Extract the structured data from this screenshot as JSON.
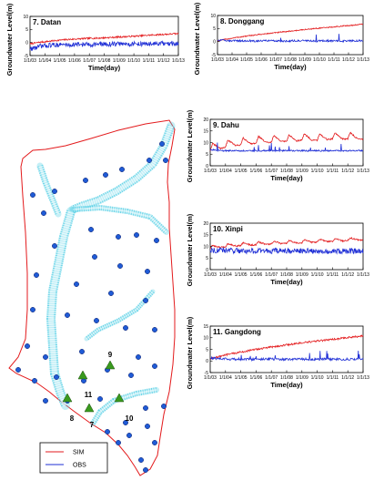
{
  "legend": {
    "items": [
      {
        "label": "SIM",
        "color": "#e31a1c"
      },
      {
        "label": "OBS",
        "color": "#1f2fd6"
      }
    ]
  },
  "map": {
    "boundary_color": "#e31a1c",
    "channel_color": "#5ad0e6",
    "well_color": "#1f5bd6",
    "station_marker_color": "#3a9a1e",
    "stations": [
      "7",
      "8",
      "9",
      "10",
      "11"
    ]
  },
  "chart_data": [
    {
      "type": "line",
      "title": "7. Datan",
      "xlabel": "Time(day)",
      "ylabel": "Groundwater Level(m)",
      "x_ticks": [
        "1/1/03",
        "1/1/04",
        "1/1/05",
        "1/1/06",
        "1/1/07",
        "1/1/08",
        "1/1/09",
        "1/1/10",
        "1/1/11",
        "1/1/12",
        "1/1/13"
      ],
      "ylim": [
        -5,
        10
      ],
      "y_ticks": [
        -5,
        0,
        5,
        10
      ],
      "series": [
        {
          "name": "SIM",
          "color": "#e31a1c",
          "values": [
            -0.5,
            0.1,
            0.5,
            0.9,
            1.2,
            1.4,
            1.6,
            1.7,
            1.9,
            2.1,
            2.3,
            2.5,
            2.8,
            3.0,
            3.2,
            3.4
          ],
          "wiggle": 0.3,
          "spike_rate": 0
        },
        {
          "name": "OBS",
          "color": "#1f2fd6",
          "values": [
            -2.5,
            -1.5,
            -1.0,
            -0.8,
            -0.9,
            -0.7,
            -0.8,
            -0.6,
            -0.7,
            -0.5,
            -0.6,
            -0.5,
            -0.6,
            -0.4,
            -0.6,
            -0.5
          ],
          "wiggle": 0.9,
          "spike_rate": 0
        }
      ]
    },
    {
      "type": "line",
      "title": "8. Donggang",
      "xlabel": "Time(day)",
      "ylabel": "Groundwater Level(m)",
      "x_ticks": [
        "1/1/03",
        "1/1/04",
        "1/1/05",
        "1/1/06",
        "1/1/07",
        "1/1/08",
        "1/1/09",
        "1/1/10",
        "1/1/11",
        "1/1/12",
        "1/1/13"
      ],
      "ylim": [
        -5,
        10
      ],
      "y_ticks": [
        -5,
        0,
        5,
        10
      ],
      "series": [
        {
          "name": "SIM",
          "color": "#e31a1c",
          "values": [
            0.3,
            1.0,
            1.6,
            2.1,
            2.6,
            3.0,
            3.4,
            3.8,
            4.2,
            4.6,
            5.0,
            5.3,
            5.6,
            6.0,
            6.3,
            6.7
          ],
          "wiggle": 0.2,
          "spike_rate": 0
        },
        {
          "name": "OBS",
          "color": "#1f2fd6",
          "values": [
            0.6,
            0.4,
            0.3,
            0.3,
            0.2,
            0.3,
            0.3,
            0.2,
            0.3,
            0.3,
            0.2,
            0.3,
            0.3,
            0.2,
            0.3,
            0.3
          ],
          "wiggle": 0.35,
          "spike_rate": 0.02
        }
      ]
    },
    {
      "type": "line",
      "title": "9. Dahu",
      "xlabel": "Time(day)",
      "ylabel": "Groundwater Level(m)",
      "x_ticks": [
        "1/1/03",
        "1/1/04",
        "1/1/05",
        "1/1/06",
        "1/1/07",
        "1/1/08",
        "1/1/09",
        "1/1/10",
        "1/1/11",
        "1/1/12",
        "1/1/13"
      ],
      "ylim": [
        0,
        20
      ],
      "y_ticks": [
        0,
        5,
        10,
        15,
        20
      ],
      "series": [
        {
          "name": "SIM",
          "color": "#e31a1c",
          "values": [
            7.5,
            8.5,
            9.5,
            10.0,
            10.5,
            11.0,
            11.0,
            11.5,
            11.5,
            12.0,
            12.0,
            12.0,
            12.5,
            12.5,
            12.5,
            12.5
          ],
          "wiggle": 0.3,
          "seasonal": 2.8,
          "spike_rate": 0
        },
        {
          "name": "OBS",
          "color": "#1f2fd6",
          "values": [
            7.0,
            6.5,
            6.5,
            6.5,
            6.5,
            6.5,
            6.5,
            6.5,
            6.5,
            6.5,
            6.5,
            6.5,
            6.5,
            6.5,
            6.5,
            6.5
          ],
          "wiggle": 0.3,
          "spike_rate": 0.03
        }
      ]
    },
    {
      "type": "line",
      "title": "10. Xinpi",
      "xlabel": "Time(day)",
      "ylabel": "Groundwater Level(m)",
      "x_ticks": [
        "1/1/03",
        "1/1/04",
        "1/1/05",
        "1/1/06",
        "1/1/07",
        "1/1/08",
        "1/1/09",
        "1/1/10",
        "1/1/11",
        "1/1/12",
        "1/1/13"
      ],
      "ylim": [
        0,
        20
      ],
      "y_ticks": [
        0,
        5,
        10,
        15,
        20
      ],
      "series": [
        {
          "name": "SIM",
          "color": "#e31a1c",
          "values": [
            9.5,
            10.0,
            10.5,
            10.8,
            11.0,
            11.2,
            11.4,
            11.6,
            11.8,
            12.0,
            12.2,
            12.4,
            12.6,
            12.8,
            13.0,
            13.3
          ],
          "wiggle": 0.3,
          "seasonal": 1.2,
          "spike_rate": 0
        },
        {
          "name": "OBS",
          "color": "#1f2fd6",
          "values": [
            8.5,
            8.3,
            8.2,
            8.2,
            8.0,
            8.0,
            8.1,
            8.0,
            8.0,
            8.0,
            8.0,
            8.0,
            8.0,
            8.0,
            8.0,
            8.0
          ],
          "wiggle": 1.2,
          "spike_rate": 0
        }
      ]
    },
    {
      "type": "line",
      "title": "11. Gangdong",
      "xlabel": "Time(day)",
      "ylabel": "Groundwater Level(m)",
      "x_ticks": [
        "1/1/03",
        "1/1/04",
        "1/1/05",
        "1/1/06",
        "1/1/07",
        "1/1/08",
        "1/1/09",
        "1/1/10",
        "1/1/11",
        "1/1/12",
        "1/1/13"
      ],
      "ylim": [
        -5,
        15
      ],
      "y_ticks": [
        -5,
        0,
        5,
        10,
        15
      ],
      "series": [
        {
          "name": "SIM",
          "color": "#e31a1c",
          "values": [
            1.0,
            2.0,
            3.0,
            3.8,
            4.6,
            5.3,
            6.0,
            6.6,
            7.2,
            7.8,
            8.3,
            8.8,
            9.3,
            9.8,
            10.3,
            10.8
          ],
          "wiggle": 0.4,
          "spike_rate": 0
        },
        {
          "name": "OBS",
          "color": "#1f2fd6",
          "values": [
            1.2,
            1.0,
            0.8,
            0.8,
            0.7,
            0.8,
            0.8,
            0.7,
            0.8,
            0.8,
            0.7,
            0.8,
            0.8,
            0.7,
            0.8,
            0.8
          ],
          "wiggle": 0.5,
          "spike_rate": 0.03
        }
      ]
    }
  ]
}
